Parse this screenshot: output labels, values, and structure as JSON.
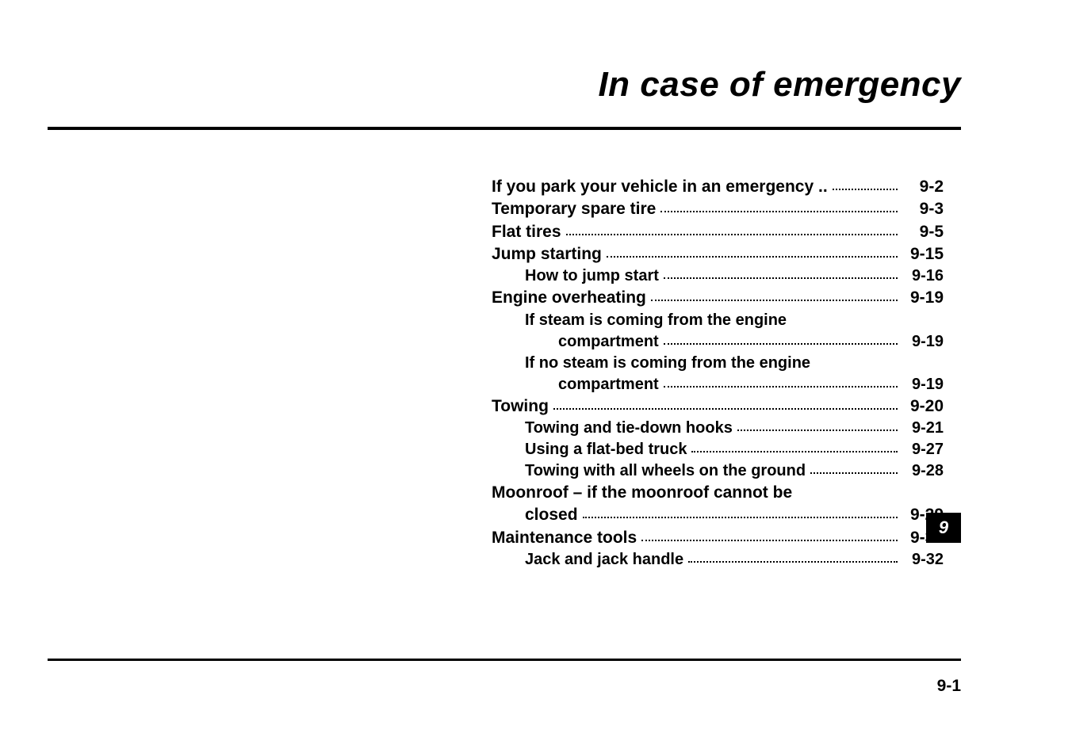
{
  "document": {
    "title": "In case of emergency",
    "chapter_number": "9",
    "footer_page": "9-1",
    "typography": {
      "title_fontsize_pt": 33,
      "title_weight": "bold",
      "title_style": "italic",
      "main_row_fontsize_pt": 16,
      "sub_row_fontsize_pt": 15,
      "row_weight": "bold",
      "font_family": "Arial",
      "text_color": "#000000",
      "background_color": "#ffffff",
      "tab_bg": "#000000",
      "tab_fg": "#ffffff",
      "rule_color": "#000000",
      "dot_color": "#000000"
    },
    "toc": [
      {
        "level": "main",
        "indent": 0,
        "label": "If you park your vehicle in an emergency",
        "suffix": " ..",
        "page": "9-2"
      },
      {
        "level": "main",
        "indent": 0,
        "label": "Temporary spare tire",
        "page": "9-3"
      },
      {
        "level": "main",
        "indent": 0,
        "label": "Flat tires",
        "page": "9-5"
      },
      {
        "level": "main",
        "indent": 0,
        "label": "Jump starting",
        "page": "9-15"
      },
      {
        "level": "sub",
        "indent": 1,
        "label": "How to jump start",
        "page": "9-16"
      },
      {
        "level": "main",
        "indent": 0,
        "label": "Engine overheating",
        "page": "9-19"
      },
      {
        "level": "sub",
        "indent": 1,
        "label": "If steam is coming from the engine",
        "continuation": true
      },
      {
        "level": "sub",
        "indent": 2,
        "label": "compartment",
        "page": "9-19"
      },
      {
        "level": "sub",
        "indent": 1,
        "label": "If no steam is coming from the engine",
        "continuation": true
      },
      {
        "level": "sub",
        "indent": 2,
        "label": "compartment",
        "page": "9-19"
      },
      {
        "level": "main",
        "indent": 0,
        "label": "Towing",
        "page": "9-20"
      },
      {
        "level": "sub",
        "indent": 1,
        "label": "Towing and tie-down hooks",
        "page": "9-21"
      },
      {
        "level": "sub",
        "indent": 1,
        "label": "Using a flat-bed truck",
        "page": "9-27"
      },
      {
        "level": "sub",
        "indent": 1,
        "label": "Towing with all wheels on the ground",
        "page": "9-28"
      },
      {
        "level": "main",
        "indent": 0,
        "label": "Moonroof – if the moonroof cannot be",
        "continuation": true
      },
      {
        "level": "main",
        "indent": 1,
        "label": "closed",
        "page": "9-29"
      },
      {
        "level": "main",
        "indent": 0,
        "label": "Maintenance tools",
        "page": "9-31"
      },
      {
        "level": "sub",
        "indent": 1,
        "label": "Jack and jack handle",
        "page": "9-32"
      }
    ]
  }
}
